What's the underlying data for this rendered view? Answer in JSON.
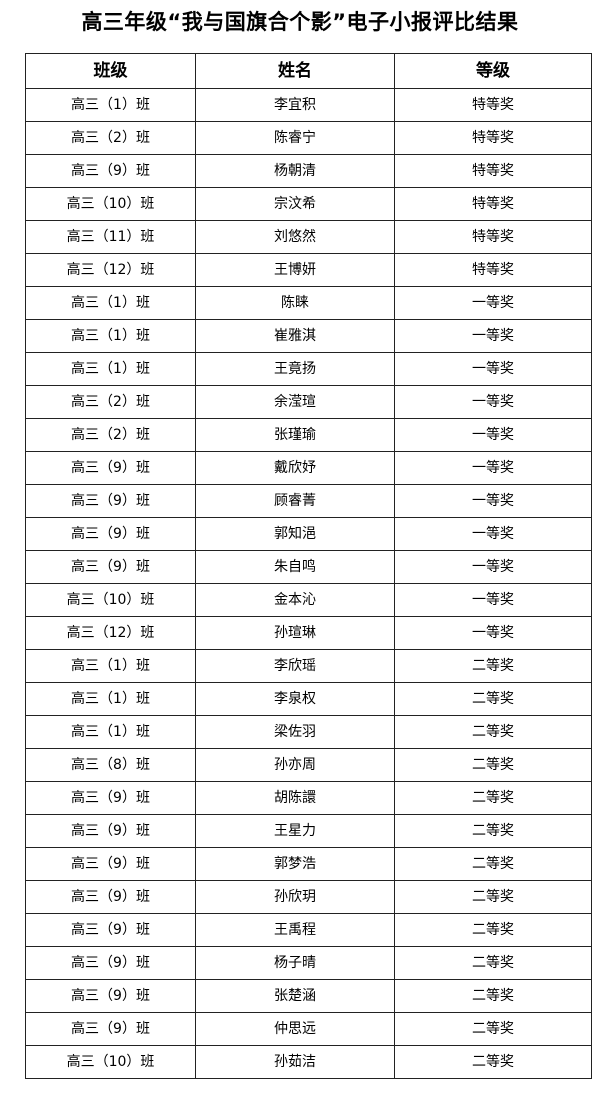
{
  "title": "高三年级“我与国旗合个影”电子小报评比结果",
  "headers": [
    "班级",
    "姓名",
    "等级"
  ],
  "rows": [
    [
      "高三（1）班",
      "李宜积",
      "特等奖"
    ],
    [
      "高三（2）班",
      "陈睿宁",
      "特等奖"
    ],
    [
      "高三（9）班",
      "杨朝清",
      "特等奖"
    ],
    [
      "高三（10）班",
      "宗汶希",
      "特等奖"
    ],
    [
      "高三（11）班",
      "刘悠然",
      "特等奖"
    ],
    [
      "高三（12）班",
      "王博妍",
      "特等奖"
    ],
    [
      "高三（1）班",
      "陈睐",
      "一等奖"
    ],
    [
      "高三（1）班",
      "崔雅淇",
      "一等奖"
    ],
    [
      "高三（1）班",
      "王竟扬",
      "一等奖"
    ],
    [
      "高三（2）班",
      "余滢瑄",
      "一等奖"
    ],
    [
      "高三（2）班",
      "张瑾瑜",
      "一等奖"
    ],
    [
      "高三（9）班",
      "戴欣妤",
      "一等奖"
    ],
    [
      "高三（9）班",
      "顾睿菁",
      "一等奖"
    ],
    [
      "高三（9）班",
      "郭知浥",
      "一等奖"
    ],
    [
      "高三（9）班",
      "朱自鸣",
      "一等奖"
    ],
    [
      "高三（10）班",
      "金本沁",
      "一等奖"
    ],
    [
      "高三（12）班",
      "孙瑄琳",
      "一等奖"
    ],
    [
      "高三（1）班",
      "李欣瑶",
      "二等奖"
    ],
    [
      "高三（1）班",
      "李泉权",
      "二等奖"
    ],
    [
      "高三（1）班",
      "梁佐羽",
      "二等奖"
    ],
    [
      "高三（8）班",
      "孙亦周",
      "二等奖"
    ],
    [
      "高三（9）班",
      "胡陈譞",
      "二等奖"
    ],
    [
      "高三（9）班",
      "王星力",
      "二等奖"
    ],
    [
      "高三（9）班",
      "郭梦浩",
      "二等奖"
    ],
    [
      "高三（9）班",
      "孙欣玥",
      "二等奖"
    ],
    [
      "高三（9）班",
      "王禹程",
      "二等奖"
    ],
    [
      "高三（9）班",
      "杨子晴",
      "二等奖"
    ],
    [
      "高三（9）班",
      "张楚涵",
      "二等奖"
    ],
    [
      "高三（9）班",
      "仲思远",
      "二等奖"
    ],
    [
      "高三（10）班",
      "孙茹洁",
      "二等奖"
    ]
  ]
}
